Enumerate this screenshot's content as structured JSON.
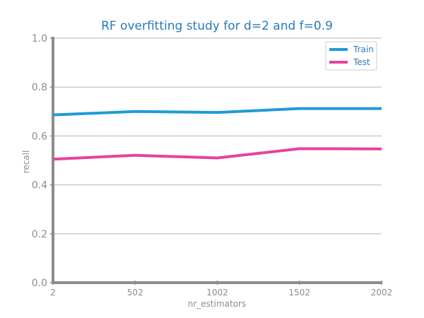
{
  "chart_data": {
    "type": "line",
    "title": "RF overfitting study for d=2 and f=0.9",
    "xlabel": "nr_estimators",
    "ylabel": "recall",
    "x": [
      2,
      502,
      1002,
      1502,
      2002
    ],
    "x_tick_labels": [
      "2",
      "502",
      "1002",
      "1502",
      "2002"
    ],
    "y_tick_labels": [
      "0.0",
      "0.2",
      "0.4",
      "0.6",
      "0.8",
      "1.0"
    ],
    "y_ticks": [
      0.0,
      0.2,
      0.4,
      0.6,
      0.8,
      1.0
    ],
    "xlim": [
      2,
      2002
    ],
    "ylim": [
      0.0,
      1.0
    ],
    "grid": "horizontal",
    "legend_position": "top-right",
    "series": [
      {
        "name": "Train",
        "color": "#1f9bd7",
        "values": [
          0.686,
          0.7,
          0.696,
          0.712,
          0.712
        ]
      },
      {
        "name": "Test",
        "color": "#e6439b",
        "values": [
          0.505,
          0.521,
          0.51,
          0.548,
          0.547
        ]
      }
    ]
  }
}
